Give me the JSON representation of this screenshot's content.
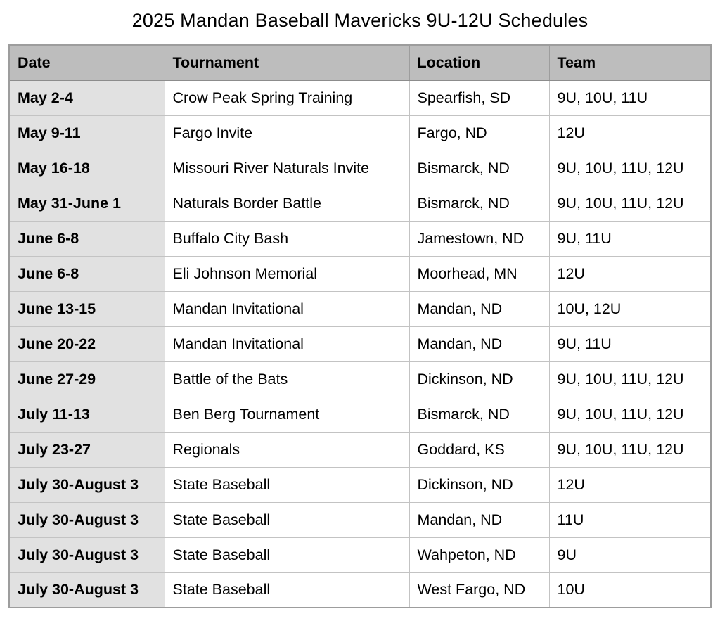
{
  "page": {
    "title": "2025 Mandan Baseball Mavericks 9U-12U Schedules"
  },
  "colors": {
    "header_bg": "#bdbdbd",
    "date_column_bg": "#e1e1e1",
    "row_bg": "#ffffff",
    "grid_border": "#c3c3c3",
    "outer_border": "#9d9d9d",
    "text": "#000000"
  },
  "table": {
    "headers": [
      "Date",
      "Tournament",
      "Location",
      "Team"
    ],
    "rows": [
      {
        "date": "May 2-4",
        "tournament": "Crow Peak Spring Training",
        "location": "Spearfish, SD",
        "team": "9U, 10U, 11U"
      },
      {
        "date": "May 9-11",
        "tournament": "Fargo Invite",
        "location": "Fargo, ND",
        "team": "12U"
      },
      {
        "date": "May 16-18",
        "tournament": "Missouri River Naturals Invite",
        "location": "Bismarck, ND",
        "team": "9U, 10U, 11U, 12U"
      },
      {
        "date": "May 31-June 1",
        "tournament": "Naturals Border Battle",
        "location": "Bismarck, ND",
        "team": "9U, 10U, 11U, 12U"
      },
      {
        "date": "June 6-8",
        "tournament": "Buffalo City Bash",
        "location": "Jamestown, ND",
        "team": "9U, 11U"
      },
      {
        "date": "June 6-8",
        "tournament": "Eli Johnson Memorial",
        "location": "Moorhead, MN",
        "team": "12U"
      },
      {
        "date": "June 13-15",
        "tournament": "Mandan Invitational",
        "location": "Mandan, ND",
        "team": "10U, 12U"
      },
      {
        "date": "June 20-22",
        "tournament": "Mandan Invitational",
        "location": "Mandan, ND",
        "team": "9U, 11U"
      },
      {
        "date": "June 27-29",
        "tournament": "Battle of the Bats",
        "location": "Dickinson, ND",
        "team": "9U, 10U, 11U, 12U"
      },
      {
        "date": "July 11-13",
        "tournament": "Ben Berg Tournament",
        "location": "Bismarck, ND",
        "team": "9U, 10U, 11U, 12U"
      },
      {
        "date": "July 23-27",
        "tournament": "Regionals",
        "location": "Goddard, KS",
        "team": "9U, 10U, 11U, 12U"
      },
      {
        "date": "July 30-August 3",
        "tournament": "State Baseball",
        "location": "Dickinson, ND",
        "team": "12U"
      },
      {
        "date": "July 30-August 3",
        "tournament": "State Baseball",
        "location": "Mandan, ND",
        "team": "11U"
      },
      {
        "date": "July 30-August 3",
        "tournament": "State Baseball",
        "location": "Wahpeton, ND",
        "team": "9U"
      },
      {
        "date": "July 30-August 3",
        "tournament": "State Baseball",
        "location": "West Fargo, ND",
        "team": "10U"
      }
    ]
  }
}
